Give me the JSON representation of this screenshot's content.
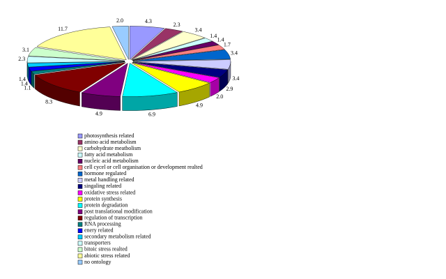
{
  "chart_data": {
    "type": "pie",
    "categories": [
      "photosynthesis related",
      "amino acid metabolism",
      "carbohydrate meatbolism",
      "fatty acid metabolism",
      "nucleic acid metabolism",
      "cell cycel or cell organisation or development realted",
      "hormone regulated",
      "metal handling related",
      "singaling related",
      "oxidative stress related",
      "protein synthesis",
      "protein degradation",
      "post translational modification",
      "regulation of transcription",
      "RNA processing",
      "enery related",
      "secondary metabolism related",
      "transporters",
      "bitoic stress realted",
      "abiotic stress related",
      "no ontology"
    ],
    "values": [
      4.3,
      2.3,
      3.4,
      1.4,
      1.4,
      1.7,
      3.4,
      3.4,
      2.9,
      2.0,
      4.9,
      6.9,
      4.9,
      8.3,
      1.1,
      1.4,
      1.4,
      2.3,
      3.1,
      11.7,
      2.0
    ],
    "value_labels": [
      "4.3",
      "2.3",
      "3.4",
      "1.4",
      "1.4",
      "1.7",
      "3.4",
      "3.4",
      "2.9",
      "2.0",
      "4.9",
      "6.9",
      "4.9",
      "8.3",
      "1.1",
      "1.4",
      "1.4",
      "2.3",
      "3.1",
      "11.7",
      "2.0"
    ],
    "colors": [
      "#9999ff",
      "#993366",
      "#ffffcc",
      "#ccffff",
      "#660066",
      "#ff8080",
      "#0066cc",
      "#ccccff",
      "#000080",
      "#ff00ff",
      "#ffff00",
      "#00ffff",
      "#800080",
      "#800000",
      "#008080",
      "#0000ff",
      "#00ccff",
      "#ccffff",
      "#ccffcc",
      "#ffff99",
      "#99ccff"
    ]
  }
}
